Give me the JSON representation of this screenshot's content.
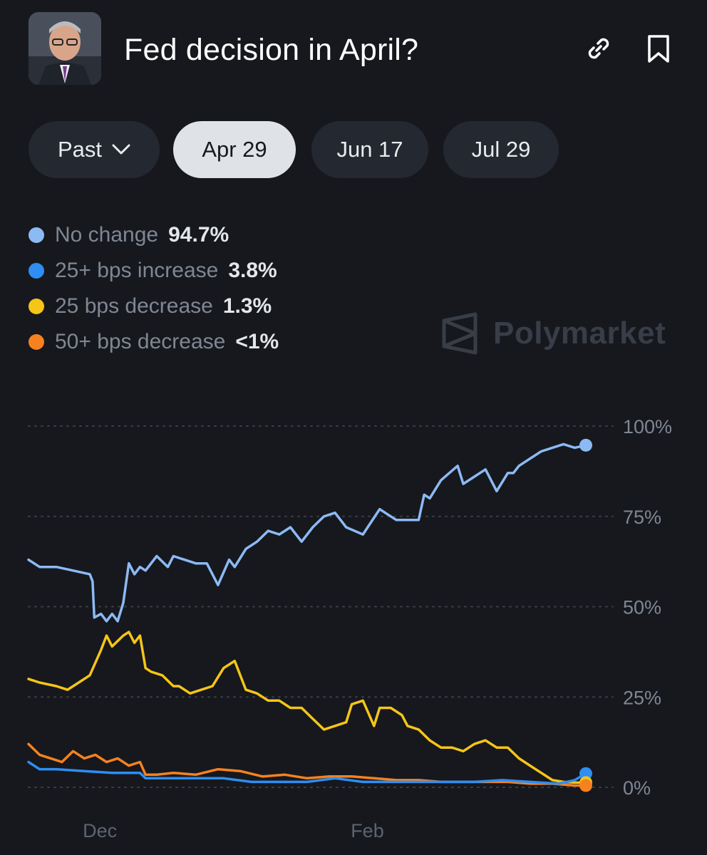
{
  "header": {
    "title": "Fed decision in April?",
    "avatar_icon": "person-portrait",
    "link_icon": "link-icon",
    "bookmark_icon": "bookmark-icon"
  },
  "tabs": {
    "past_label": "Past",
    "items": [
      "Apr 29",
      "Jun 17",
      "Jul 29"
    ],
    "active": "Apr 29"
  },
  "legend": [
    {
      "name": "No change",
      "value": "94.7%",
      "color": "#8cbaf4"
    },
    {
      "name": "25+ bps increase",
      "value": "3.8%",
      "color": "#2e8ef3"
    },
    {
      "name": "25 bps decrease",
      "value": "1.3%",
      "color": "#f5c518"
    },
    {
      "name": "50+ bps decrease",
      "value": "<1%",
      "color": "#f5821f"
    }
  ],
  "watermark": "Polymarket",
  "chart_data": {
    "type": "line",
    "title": "",
    "ylabel": "",
    "xlabel": "",
    "ylim": [
      0,
      100
    ],
    "yticks": [
      "100%",
      "75%",
      "50%",
      "25%",
      "0%"
    ],
    "ytick_values": [
      100,
      75,
      50,
      25,
      0
    ],
    "xticks": [
      "Dec",
      "Feb"
    ],
    "xtick_positions": [
      0.128,
      0.608
    ],
    "x_range": [
      0,
      1
    ],
    "grid": true,
    "series": [
      {
        "name": "No change",
        "color": "#8cbaf4",
        "x": [
          0.0,
          0.02,
          0.05,
          0.08,
          0.11,
          0.115,
          0.118,
          0.13,
          0.14,
          0.15,
          0.16,
          0.17,
          0.18,
          0.19,
          0.2,
          0.21,
          0.23,
          0.25,
          0.26,
          0.28,
          0.3,
          0.32,
          0.34,
          0.36,
          0.37,
          0.39,
          0.41,
          0.43,
          0.45,
          0.47,
          0.49,
          0.51,
          0.53,
          0.55,
          0.57,
          0.6,
          0.63,
          0.64,
          0.66,
          0.68,
          0.7,
          0.71,
          0.72,
          0.74,
          0.77,
          0.78,
          0.8,
          0.82,
          0.84,
          0.86,
          0.87,
          0.88,
          0.9,
          0.92,
          0.94,
          0.96,
          0.98,
          1.0
        ],
        "y": [
          63,
          61,
          61,
          60,
          59,
          57,
          47,
          48,
          46,
          48,
          46,
          51,
          62,
          59,
          61,
          60,
          64,
          61,
          64,
          63,
          62,
          62,
          56,
          63,
          61,
          66,
          68,
          71,
          70,
          72,
          68,
          72,
          75,
          76,
          72,
          70,
          77,
          76,
          74,
          74,
          74,
          81,
          80,
          85,
          89,
          84,
          86,
          88,
          82,
          87,
          87,
          89,
          91,
          93,
          94,
          95,
          94,
          94.7
        ]
      },
      {
        "name": "25+ bps increase",
        "color": "#2e8ef3",
        "x": [
          0.0,
          0.02,
          0.05,
          0.1,
          0.15,
          0.2,
          0.21,
          0.25,
          0.3,
          0.35,
          0.4,
          0.45,
          0.5,
          0.55,
          0.6,
          0.65,
          0.7,
          0.75,
          0.8,
          0.85,
          0.9,
          0.95,
          0.98,
          1.0
        ],
        "y": [
          7,
          5,
          5,
          4.5,
          4,
          4,
          2.5,
          2.5,
          2.5,
          2.5,
          1.5,
          1.5,
          1.5,
          2.5,
          1.5,
          1.5,
          1.5,
          1.5,
          1.5,
          2,
          1.5,
          1,
          2,
          3.8
        ]
      },
      {
        "name": "25 bps decrease",
        "color": "#f5c518",
        "x": [
          0.0,
          0.02,
          0.05,
          0.07,
          0.09,
          0.11,
          0.13,
          0.14,
          0.15,
          0.17,
          0.18,
          0.19,
          0.2,
          0.21,
          0.22,
          0.24,
          0.26,
          0.27,
          0.29,
          0.31,
          0.33,
          0.35,
          0.37,
          0.39,
          0.41,
          0.43,
          0.45,
          0.47,
          0.49,
          0.51,
          0.53,
          0.55,
          0.57,
          0.58,
          0.6,
          0.62,
          0.63,
          0.65,
          0.67,
          0.68,
          0.7,
          0.72,
          0.74,
          0.76,
          0.78,
          0.8,
          0.82,
          0.84,
          0.86,
          0.88,
          0.9,
          0.92,
          0.94,
          0.96,
          0.98,
          1.0
        ],
        "y": [
          30,
          29,
          28,
          27,
          29,
          31,
          38,
          42,
          39,
          42,
          43,
          40,
          42,
          33,
          32,
          31,
          28,
          28,
          26,
          27,
          28,
          33,
          35,
          27,
          26,
          24,
          24,
          22,
          22,
          19,
          16,
          17,
          18,
          23,
          24,
          17,
          22,
          22,
          20,
          17,
          16,
          13,
          11,
          11,
          10,
          12,
          13,
          11,
          11,
          8,
          6,
          4,
          2,
          1.5,
          1.3,
          1.3
        ]
      },
      {
        "name": "50+ bps decrease",
        "color": "#f5821f",
        "x": [
          0.0,
          0.02,
          0.04,
          0.06,
          0.08,
          0.1,
          0.12,
          0.14,
          0.16,
          0.18,
          0.2,
          0.21,
          0.23,
          0.26,
          0.3,
          0.34,
          0.38,
          0.42,
          0.46,
          0.5,
          0.54,
          0.58,
          0.62,
          0.66,
          0.7,
          0.74,
          0.78,
          0.82,
          0.86,
          0.9,
          0.94,
          0.98,
          1.0
        ],
        "y": [
          12,
          9,
          8,
          7,
          10,
          8,
          9,
          7,
          8,
          6,
          7,
          3.5,
          3.5,
          4,
          3.5,
          5,
          4.5,
          3,
          3.5,
          2.5,
          3,
          3,
          2.5,
          2,
          2,
          1.5,
          1.5,
          1.5,
          1.5,
          1,
          1,
          0.5,
          0.5
        ]
      }
    ]
  }
}
